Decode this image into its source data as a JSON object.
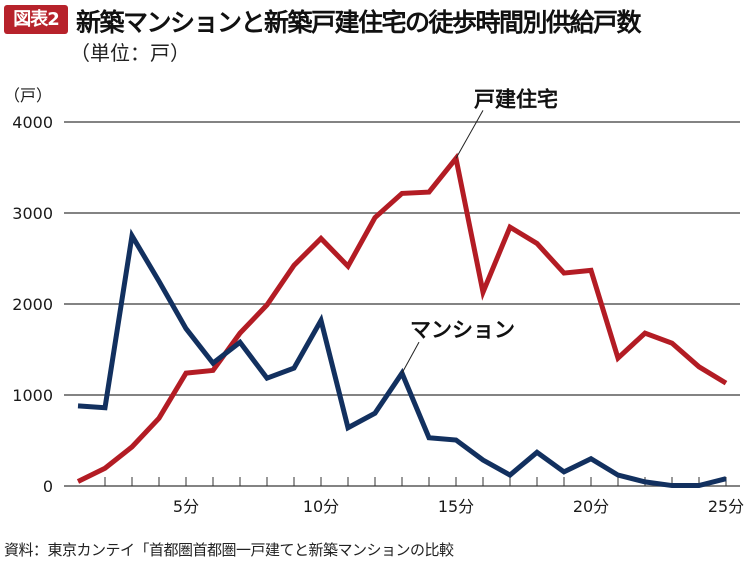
{
  "header": {
    "badge": "図表2",
    "title": "新築マンションと新築戸建住宅の徒歩時間別供給戸数",
    "unit": "（単位：戸）"
  },
  "source": "資料：東京カンテイ「首都圏首都圏一戸建てと新築マンションの比較",
  "colors": {
    "badge": "#b7222b",
    "detached": "#b31c24",
    "mansion": "#12305f",
    "grid": "#5a5a5a"
  },
  "chart_data": {
    "type": "line",
    "title": "新築マンションと新築戸建住宅の徒歩時間別供給戸数",
    "ylabel": "（戸）",
    "xlabel": "",
    "ylim": [
      0,
      4000
    ],
    "xlim": [
      1,
      25
    ],
    "grid": true,
    "yticks": [
      {
        "value": 0,
        "label": "0"
      },
      {
        "value": 1000,
        "label": "1000"
      },
      {
        "value": 2000,
        "label": "2000"
      },
      {
        "value": 3000,
        "label": "3000"
      },
      {
        "value": 4000,
        "label": "4000"
      }
    ],
    "xticks": [
      {
        "value": 5,
        "label": "5分"
      },
      {
        "value": 10,
        "label": "10分"
      },
      {
        "value": 15,
        "label": "15分"
      },
      {
        "value": 20,
        "label": "20分"
      },
      {
        "value": 25,
        "label": "25分"
      }
    ],
    "x": [
      1,
      2,
      3,
      4,
      5,
      6,
      7,
      8,
      9,
      10,
      11,
      12,
      13,
      14,
      15,
      16,
      17,
      18,
      19,
      20,
      21,
      22,
      23,
      24,
      25
    ],
    "series": [
      {
        "name": "戸建住宅",
        "key": "detached",
        "label_anchor_x": 15,
        "values": [
          50,
          195,
          430,
          745,
          1240,
          1270,
          1680,
          1990,
          2425,
          2720,
          2415,
          2950,
          3215,
          3230,
          3600,
          2130,
          2845,
          2665,
          2340,
          2370,
          1405,
          1680,
          1570,
          1310,
          1130
        ]
      },
      {
        "name": "マンション",
        "key": "mansion",
        "label_anchor_x": 13,
        "values": [
          880,
          860,
          2750,
          2250,
          1730,
          1350,
          1580,
          1185,
          1295,
          1820,
          640,
          800,
          1240,
          530,
          505,
          285,
          120,
          370,
          155,
          300,
          120,
          45,
          5,
          5,
          80
        ]
      }
    ]
  }
}
